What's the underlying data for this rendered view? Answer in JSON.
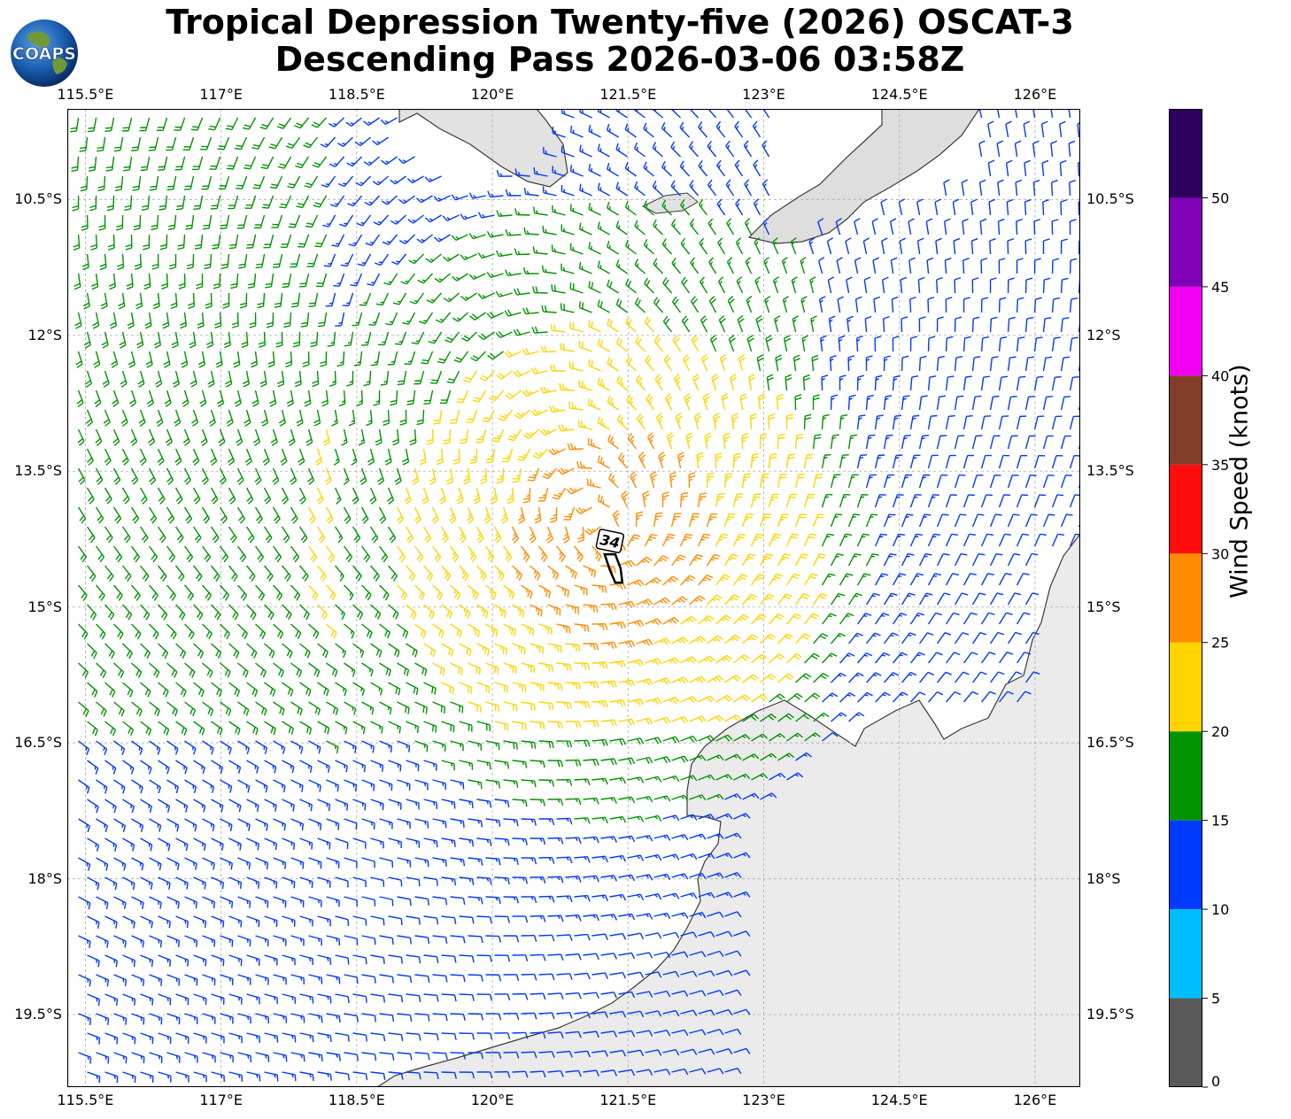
{
  "header": {
    "title_line1": "Tropical Depression Twenty-five (2026) OSCAT-3",
    "title_line2": "Descending Pass 2026-03-06 03:58Z"
  },
  "logo": {
    "text": "COAPS"
  },
  "axes": {
    "lon_labels": [
      "115.5°E",
      "117°E",
      "118.5°E",
      "120°E",
      "121.5°E",
      "123°E",
      "124.5°E",
      "126°E"
    ],
    "lat_labels": [
      "10.5°S",
      "12°S",
      "13.5°S",
      "15°S",
      "16.5°S",
      "18°S",
      "19.5°S"
    ],
    "lon_values": [
      115.5,
      117,
      118.5,
      120,
      121.5,
      123,
      124.5,
      126
    ],
    "lat_values": [
      -10.5,
      -12,
      -13.5,
      -15,
      -16.5,
      -18,
      -19.5
    ],
    "lon_range": [
      115.3,
      126.5
    ],
    "lat_range": [
      -20.3,
      -9.5
    ]
  },
  "storm_center": {
    "label": "34",
    "lon": 121.3,
    "lat": -14.3
  },
  "colorbar": {
    "label": "Wind Speed (knots)",
    "ticks": [
      "0",
      "5",
      "10",
      "15",
      "20",
      "25",
      "30",
      "35",
      "40",
      "45",
      "50"
    ],
    "bins": [
      {
        "min": 0,
        "max": 5,
        "color": "#595959"
      },
      {
        "min": 5,
        "max": 10,
        "color": "#00bfff"
      },
      {
        "min": 10,
        "max": 15,
        "color": "#0039ff"
      },
      {
        "min": 15,
        "max": 20,
        "color": "#009400"
      },
      {
        "min": 20,
        "max": 25,
        "color": "#ffd400"
      },
      {
        "min": 25,
        "max": 30,
        "color": "#ff8c00"
      },
      {
        "min": 30,
        "max": 35,
        "color": "#ff0d0d"
      },
      {
        "min": 35,
        "max": 40,
        "color": "#833e2a"
      },
      {
        "min": 40,
        "max": 45,
        "color": "#f200f2"
      },
      {
        "min": 45,
        "max": 50,
        "color": "#8000b8"
      },
      {
        "min": 50,
        "max": 55,
        "color": "#2e0060"
      }
    ]
  }
}
